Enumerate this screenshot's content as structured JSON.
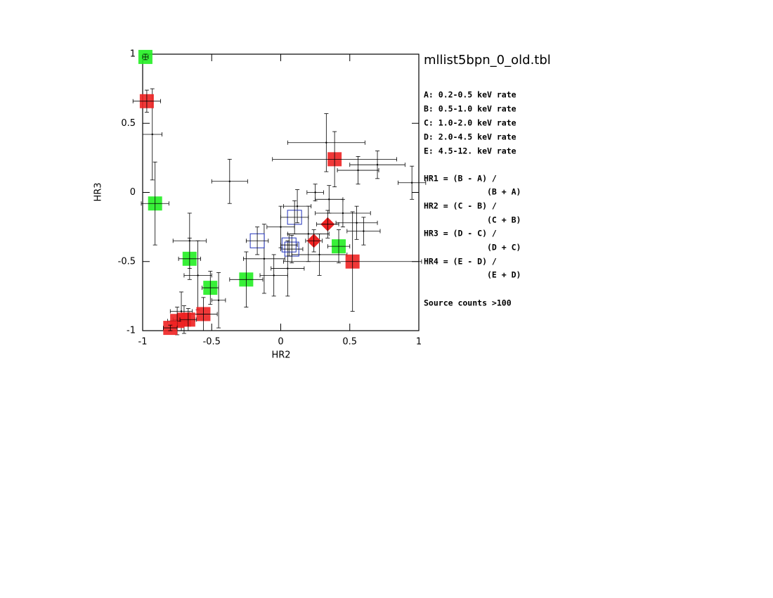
{
  "chart_data": {
    "type": "scatter",
    "title": "mllist5bpn_0_old.tbl",
    "x_label": "HR2",
    "y_label": "HR3",
    "xlim": [
      -1,
      1
    ],
    "ylim": [
      -1,
      1
    ],
    "xticks": [
      -1,
      -0.5,
      0,
      0.5,
      1
    ],
    "yticks": [
      -1,
      -0.5,
      0,
      0.5,
      1
    ],
    "annotations": [
      "A: 0.2-0.5 keV rate",
      "B: 0.5-1.0 keV rate",
      "C: 1.0-2.0 keV rate",
      "D: 2.0-4.5 keV rate",
      "E: 4.5-12. keV rate",
      "HR1 = (B - A) /",
      "(B + A)",
      "HR2 = (C - B) /",
      "(C + B)",
      "HR3 = (D - C) /",
      "(D + C)",
      "HR4 = (E - D) /",
      "(E + D)",
      "Source counts >100"
    ],
    "series": [
      {
        "marker": "cross",
        "color": "#000000",
        "x": [
          0.33,
          -0.37,
          0.56,
          0.7,
          0.95,
          -0.66,
          -0.93,
          0.25,
          0.12,
          0.45,
          0.55,
          0.28,
          0.05,
          -0.12,
          -0.05,
          0.2,
          0.0,
          -0.45,
          -0.72,
          0.35,
          0.6,
          -0.6
        ],
        "values": [
          0.36,
          0.08,
          0.16,
          0.2,
          0.07,
          -0.35,
          0.42,
          0.0,
          -0.1,
          -0.15,
          -0.22,
          -0.45,
          -0.55,
          -0.48,
          -0.6,
          -0.3,
          -0.25,
          -0.78,
          -0.86,
          -0.05,
          -0.28,
          -0.6
        ],
        "xerr": [
          0.28,
          0.13,
          0.15,
          0.2,
          0.1,
          0.12,
          0.07,
          0.06,
          0.1,
          0.2,
          0.15,
          0.2,
          0.12,
          0.15,
          0.1,
          0.15,
          0.1,
          0.05,
          0.08,
          0.1,
          0.12,
          0.1
        ],
        "yerr": [
          0.21,
          0.16,
          0.1,
          0.1,
          0.12,
          0.2,
          0.33,
          0.06,
          0.12,
          0.1,
          0.12,
          0.15,
          0.2,
          0.25,
          0.15,
          0.2,
          0.15,
          0.2,
          0.14,
          0.1,
          0.1,
          0.25
        ]
      },
      {
        "marker": "square",
        "color": "#22ee22",
        "x": [
          -0.98,
          -0.91,
          -0.66,
          -0.51,
          -0.25,
          0.42
        ],
        "values": [
          0.98,
          -0.08,
          -0.48,
          -0.69,
          -0.63,
          -0.39
        ],
        "xerr": [
          0.02,
          0.1,
          0.08,
          0.06,
          0.12,
          0.08
        ],
        "yerr": [
          0.02,
          0.3,
          0.15,
          0.12,
          0.2,
          0.12
        ]
      },
      {
        "marker": "square",
        "color": "#ee2222",
        "x": [
          -0.97,
          0.39,
          0.52,
          -0.56,
          -0.7,
          -0.75,
          -0.8,
          -0.67
        ],
        "values": [
          0.66,
          0.24,
          -0.5,
          -0.88,
          -0.92,
          -0.93,
          -0.98,
          -0.92
        ],
        "xerr": [
          0.1,
          0.45,
          0.5,
          0.1,
          0.08,
          0.07,
          0.05,
          0.06
        ],
        "yerr": [
          0.08,
          0.2,
          0.36,
          0.12,
          0.1,
          0.1,
          0.02,
          0.08
        ]
      },
      {
        "marker": "diamond",
        "color": "#ee2222",
        "x": [
          0.34,
          0.24
        ],
        "values": [
          -0.23,
          -0.35
        ],
        "xerr": [
          0.08,
          0.06
        ],
        "yerr": [
          0.1,
          0.08
        ]
      },
      {
        "marker": "open-square",
        "color": "#2233bb",
        "x": [
          -0.17,
          0.1,
          0.08,
          0.06
        ],
        "values": [
          -0.35,
          -0.18,
          -0.41,
          -0.38
        ],
        "xerr": [
          0.08,
          0.1,
          0.08,
          0.06
        ],
        "yerr": [
          0.1,
          0.12,
          0.1,
          0.08
        ]
      }
    ]
  }
}
